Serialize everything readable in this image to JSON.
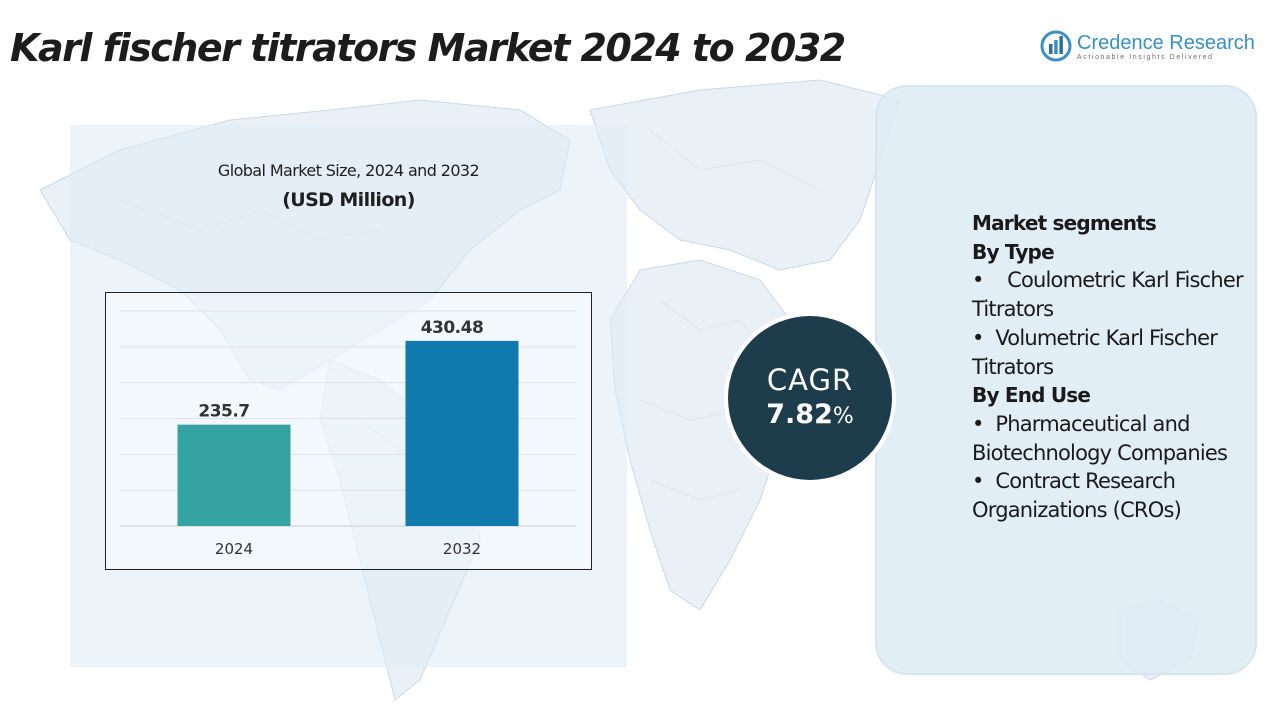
{
  "header": {
    "title": "Karl fischer titrators Market 2024 to 2032"
  },
  "logo": {
    "name": "Credence Research",
    "tagline": "Actionable Insights Delivered"
  },
  "chart": {
    "title": "Global Market Size, 2024 and 2032",
    "unit": "(USD Million)"
  },
  "chart_data": {
    "type": "bar",
    "title": "Global Market Size, 2024 and 2032",
    "ylabel": "(USD Million)",
    "categories": [
      "2024",
      "2032"
    ],
    "values": [
      235.7,
      430.48
    ],
    "value_labels": [
      "235.7",
      "430.48"
    ],
    "colors": [
      "#34a3a1",
      "#0f7aab"
    ],
    "ylim": [
      0,
      500
    ],
    "grid": true
  },
  "cagr": {
    "label": "CAGR",
    "value": "7.82",
    "suffix": "%"
  },
  "segments": {
    "heading": "Market segments",
    "groups": [
      {
        "title": "By Type",
        "items": [
          "Coulometric Karl Fischer Titrators",
          "Volumetric Karl Fischer Titrators"
        ]
      },
      {
        "title": "By End Use",
        "items": [
          "Pharmaceutical and Biotechnology Companies",
          "Contract Research Organizations (CROs)"
        ]
      }
    ]
  },
  "colors": {
    "title_text": "#1c1c1c",
    "logo_accent": "#3a8fc0",
    "panel_bg": "#ddebf5",
    "cagr_circle": "#1d3d4c",
    "bar_2024": "#34a3a1",
    "bar_2032": "#0f7aab"
  }
}
